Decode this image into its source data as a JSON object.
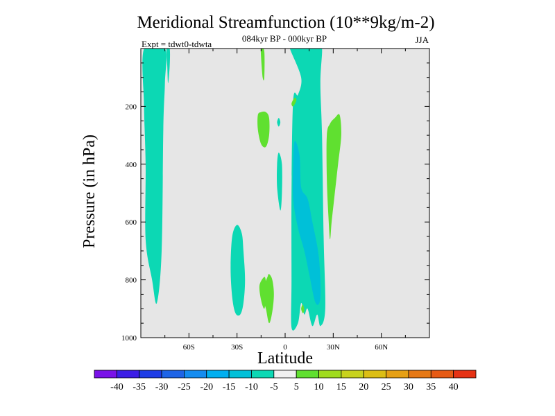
{
  "chart_data": {
    "type": "contour",
    "title": "Meridional Streamfunction (10**9kg/m-2)",
    "subtitle_center": "084kyr BP - 000kyr BP",
    "subtitle_left": "Expt = tdwt0-tdwta",
    "subtitle_right": "JJA",
    "xlabel": "Latitude",
    "ylabel": "Pressure (in hPa)",
    "x_range": [
      -90,
      90
    ],
    "y_range": [
      0,
      1000
    ],
    "y_reversed": true,
    "x_ticks": [
      {
        "value": -60,
        "label": "60S"
      },
      {
        "value": -30,
        "label": "30S"
      },
      {
        "value": 0,
        "label": "0"
      },
      {
        "value": 30,
        "label": "30N"
      },
      {
        "value": 60,
        "label": "60N"
      }
    ],
    "y_ticks": [
      {
        "value": 200,
        "label": "200"
      },
      {
        "value": 400,
        "label": "400"
      },
      {
        "value": 600,
        "label": "600"
      },
      {
        "value": 800,
        "label": "800"
      },
      {
        "value": 1000,
        "label": "1000"
      }
    ],
    "background_fill": "#e6e6e6",
    "regions": [
      {
        "name": "southern-polar-cell",
        "level": "-10 to -5",
        "color": "#0cd8b4",
        "points": [
          [
            -88,
            0
          ],
          [
            -75,
            0
          ],
          [
            -75,
            120
          ],
          [
            -76,
            280
          ],
          [
            -77,
            700
          ],
          [
            -80,
            880
          ],
          [
            -83,
            800
          ],
          [
            -87,
            660
          ],
          [
            -87,
            400
          ],
          [
            -88,
            200
          ]
        ]
      },
      {
        "name": "southern-narrow-cell",
        "level": "-10 to -5",
        "color": "#0cd8b4",
        "points": [
          [
            -74,
            0
          ],
          [
            -72,
            0
          ],
          [
            -72,
            60
          ],
          [
            -73,
            120
          ],
          [
            -73.5,
            60
          ]
        ]
      },
      {
        "name": "southern-midlat-cell",
        "level": "-10 to -5",
        "color": "#0cd8b4",
        "points": [
          [
            -30,
            610
          ],
          [
            -27,
            640
          ],
          [
            -26,
            700
          ],
          [
            -25,
            800
          ],
          [
            -26,
            880
          ],
          [
            -28,
            920
          ],
          [
            -31,
            915
          ],
          [
            -33,
            860
          ],
          [
            -34,
            760
          ],
          [
            -33,
            650
          ]
        ]
      },
      {
        "name": "equatorial-cell",
        "level": "-10 to -5",
        "color": "#0cd8b4",
        "points": [
          [
            3,
            0
          ],
          [
            5,
            0
          ],
          [
            8,
            0
          ],
          [
            12,
            0
          ],
          [
            16,
            0
          ],
          [
            20,
            0
          ],
          [
            23,
            0
          ],
          [
            22,
            120
          ],
          [
            23,
            300
          ],
          [
            24,
            650
          ],
          [
            25,
            900
          ],
          [
            22,
            960
          ],
          [
            20,
            920
          ],
          [
            17,
            960
          ],
          [
            14,
            900
          ],
          [
            12,
            920
          ],
          [
            10,
            880
          ],
          [
            8,
            950
          ],
          [
            4,
            965
          ],
          [
            4,
            800
          ],
          [
            4,
            500
          ],
          [
            5,
            180
          ],
          [
            8,
            160
          ],
          [
            10,
            100
          ]
        ]
      },
      {
        "name": "equatorial-cell-core",
        "level": "-15 to -10",
        "color": "#00c0d8",
        "points": [
          [
            6,
            320
          ],
          [
            9,
            370
          ],
          [
            10,
            480
          ],
          [
            14,
            520
          ],
          [
            17,
            600
          ],
          [
            21,
            720
          ],
          [
            22,
            860
          ],
          [
            19,
            880
          ],
          [
            15,
            780
          ],
          [
            12,
            700
          ],
          [
            8,
            620
          ],
          [
            5,
            520
          ],
          [
            5,
            400
          ]
        ]
      },
      {
        "name": "small-cell-near-equator",
        "level": "-10 to -5",
        "color": "#0cd8b4",
        "points": [
          [
            -4,
            360
          ],
          [
            -2,
            400
          ],
          [
            -2,
            500
          ],
          [
            -3,
            560
          ],
          [
            -5,
            480
          ],
          [
            -5,
            400
          ]
        ]
      },
      {
        "name": "tiny-cell-upper",
        "level": "-10 to -5",
        "color": "#0cd8b4",
        "points": [
          [
            -4,
            240
          ],
          [
            -3,
            255
          ],
          [
            -4,
            270
          ],
          [
            -5,
            255
          ]
        ]
      },
      {
        "name": "pos-cell-upper-left",
        "level": "5 to 10",
        "color": "#60e030",
        "points": [
          [
            -15,
            0
          ],
          [
            -13,
            10
          ],
          [
            -13,
            100
          ],
          [
            -14,
            100
          ],
          [
            -15,
            30
          ]
        ]
      },
      {
        "name": "pos-cell-upper",
        "level": "5 to 10",
        "color": "#60e030",
        "points": [
          [
            -12,
            220
          ],
          [
            -10,
            240
          ],
          [
            -10,
            300
          ],
          [
            -12,
            340
          ],
          [
            -15,
            330
          ],
          [
            -17,
            280
          ],
          [
            -17,
            230
          ],
          [
            -15,
            220
          ]
        ]
      },
      {
        "name": "pos-cell-mid-north",
        "level": "5 to 10",
        "color": "#60e030",
        "points": [
          [
            34,
            230
          ],
          [
            35,
            300
          ],
          [
            33,
            400
          ],
          [
            31,
            500
          ],
          [
            29,
            600
          ],
          [
            28,
            660
          ],
          [
            27,
            580
          ],
          [
            26,
            450
          ],
          [
            26,
            300
          ],
          [
            28,
            260
          ],
          [
            31,
            240
          ]
        ]
      },
      {
        "name": "pos-cell-lower",
        "level": "5 to 10",
        "color": "#60e030",
        "points": [
          [
            -10,
            780
          ],
          [
            -8,
            800
          ],
          [
            -7,
            850
          ],
          [
            -8,
            910
          ],
          [
            -10,
            950
          ],
          [
            -12,
            900
          ],
          [
            -14,
            860
          ],
          [
            -13,
            820
          ],
          [
            -11,
            790
          ]
        ]
      },
      {
        "name": "pos-cell-lower-left",
        "level": "5 to 10",
        "color": "#60e030",
        "points": [
          [
            -13,
            790
          ],
          [
            -12,
            810
          ],
          [
            -12,
            860
          ],
          [
            -13,
            900
          ],
          [
            -15,
            870
          ],
          [
            -16,
            820
          ]
        ]
      },
      {
        "name": "pos-cell-upper-right-tiny",
        "level": "5 to 10",
        "color": "#60e030",
        "points": [
          [
            4,
            190
          ],
          [
            6,
            170
          ],
          [
            7,
            180
          ],
          [
            5,
            200
          ]
        ]
      },
      {
        "name": "pos-cell-near-equator-tiny",
        "level": "5 to 10",
        "color": "#60e030",
        "points": [
          [
            11,
            885
          ],
          [
            12,
            905
          ],
          [
            11,
            915
          ],
          [
            10,
            900
          ]
        ]
      }
    ],
    "colorbar": {
      "labels": [
        "-40",
        "-35",
        "-30",
        "-25",
        "-20",
        "-15",
        "-10",
        "-5",
        "5",
        "10",
        "15",
        "20",
        "25",
        "30",
        "35",
        "40"
      ],
      "colors": [
        "#7a11e8",
        "#3c1ee6",
        "#1e3ce6",
        "#1e64e6",
        "#148cf0",
        "#00aff0",
        "#00c0d8",
        "#0cd8b4",
        "#f0f0f0",
        "#60e030",
        "#a0dc1e",
        "#c8d21e",
        "#dcbe14",
        "#e6a014",
        "#e67814",
        "#e65a14",
        "#e63214"
      ]
    }
  }
}
